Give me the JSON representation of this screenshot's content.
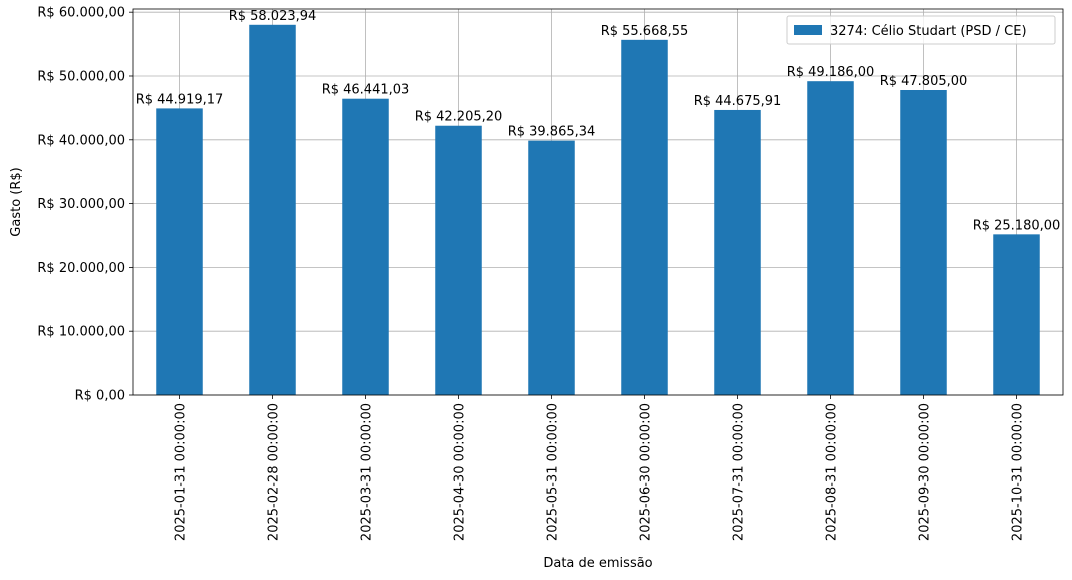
{
  "chart_data": {
    "type": "bar",
    "categories": [
      "2025-01-31 00:00:00",
      "2025-02-28 00:00:00",
      "2025-03-31 00:00:00",
      "2025-04-30 00:00:00",
      "2025-05-31 00:00:00",
      "2025-06-30 00:00:00",
      "2025-07-31 00:00:00",
      "2025-08-31 00:00:00",
      "2025-09-30 00:00:00",
      "2025-10-31 00:00:00"
    ],
    "series": [
      {
        "name": "3274: Célio Studart (PSD / CE)",
        "color": "#1f77b4",
        "values": [
          44919.17,
          58023.94,
          46441.03,
          42205.2,
          39865.34,
          55668.55,
          44675.91,
          49186.0,
          47805.0,
          25180.0
        ],
        "value_labels": [
          "R$ 44.919,17",
          "R$ 58.023,94",
          "R$ 46.441,03",
          "R$ 42.205,20",
          "R$ 39.865,34",
          "R$ 55.668,55",
          "R$ 44.675,91",
          "R$ 49.186,00",
          "R$ 47.805,00",
          "R$ 25.180,00"
        ]
      }
    ],
    "xlabel": "Data de emissão",
    "ylabel": "Gasto (R$)",
    "ylim": [
      0,
      60500
    ],
    "yticks": [
      0,
      10000,
      20000,
      30000,
      40000,
      50000,
      60000
    ],
    "ytick_labels": [
      "R$ 0,00",
      "R$ 10.000,00",
      "R$ 20.000,00",
      "R$ 30.000,00",
      "R$ 40.000,00",
      "R$ 50.000,00",
      "R$ 60.000,00"
    ],
    "grid": true,
    "legend_position": "top-right"
  }
}
